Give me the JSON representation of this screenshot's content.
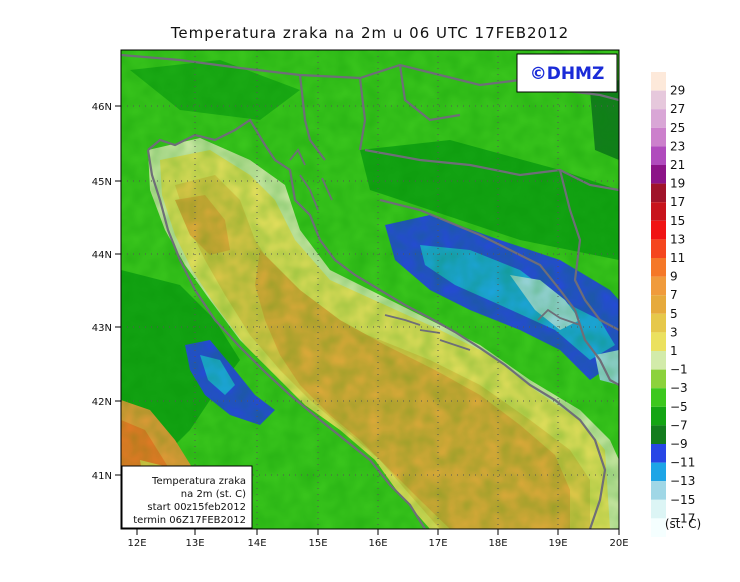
{
  "title": "Temperatura zraka na 2m u 06 UTC 17FEB2012",
  "logo": "©DHMZ",
  "info_box": {
    "line1": "Temperatura zraka",
    "line2": "na 2m (st. C)",
    "line3": "start 00z15feb2012",
    "line4": "termin 06Z17FEB2012"
  },
  "lat_labels": [
    "46N",
    "45N",
    "44N",
    "43N",
    "42N",
    "41N"
  ],
  "lon_labels": [
    "12E",
    "13E",
    "14E",
    "15E",
    "16E",
    "17E",
    "18E",
    "19E",
    "20E"
  ],
  "colorbar": {
    "unit": "(st. C)",
    "labels": [
      "29",
      "27",
      "25",
      "23",
      "21",
      "19",
      "17",
      "15",
      "13",
      "11",
      "9",
      "7",
      "5",
      "3",
      "1",
      "−1",
      "−3",
      "−5",
      "−7",
      "−9",
      "−11",
      "−13",
      "−15",
      "−17"
    ],
    "colors": [
      "#fde9da",
      "#e6c8dc",
      "#d9a6d6",
      "#cc80cc",
      "#b04bbd",
      "#8c1488",
      "#a0142a",
      "#c8141c",
      "#f01414",
      "#f5461e",
      "#f57828",
      "#f09b3c",
      "#e6aa3c",
      "#e6c84b",
      "#ebe15f",
      "#d2ebaa",
      "#8cd23c",
      "#3cc81e",
      "#14a514",
      "#147d1e",
      "#2846e6",
      "#1ea5e6",
      "#a0d7e6",
      "#dcf5f5",
      "#f5ffff"
    ]
  }
}
